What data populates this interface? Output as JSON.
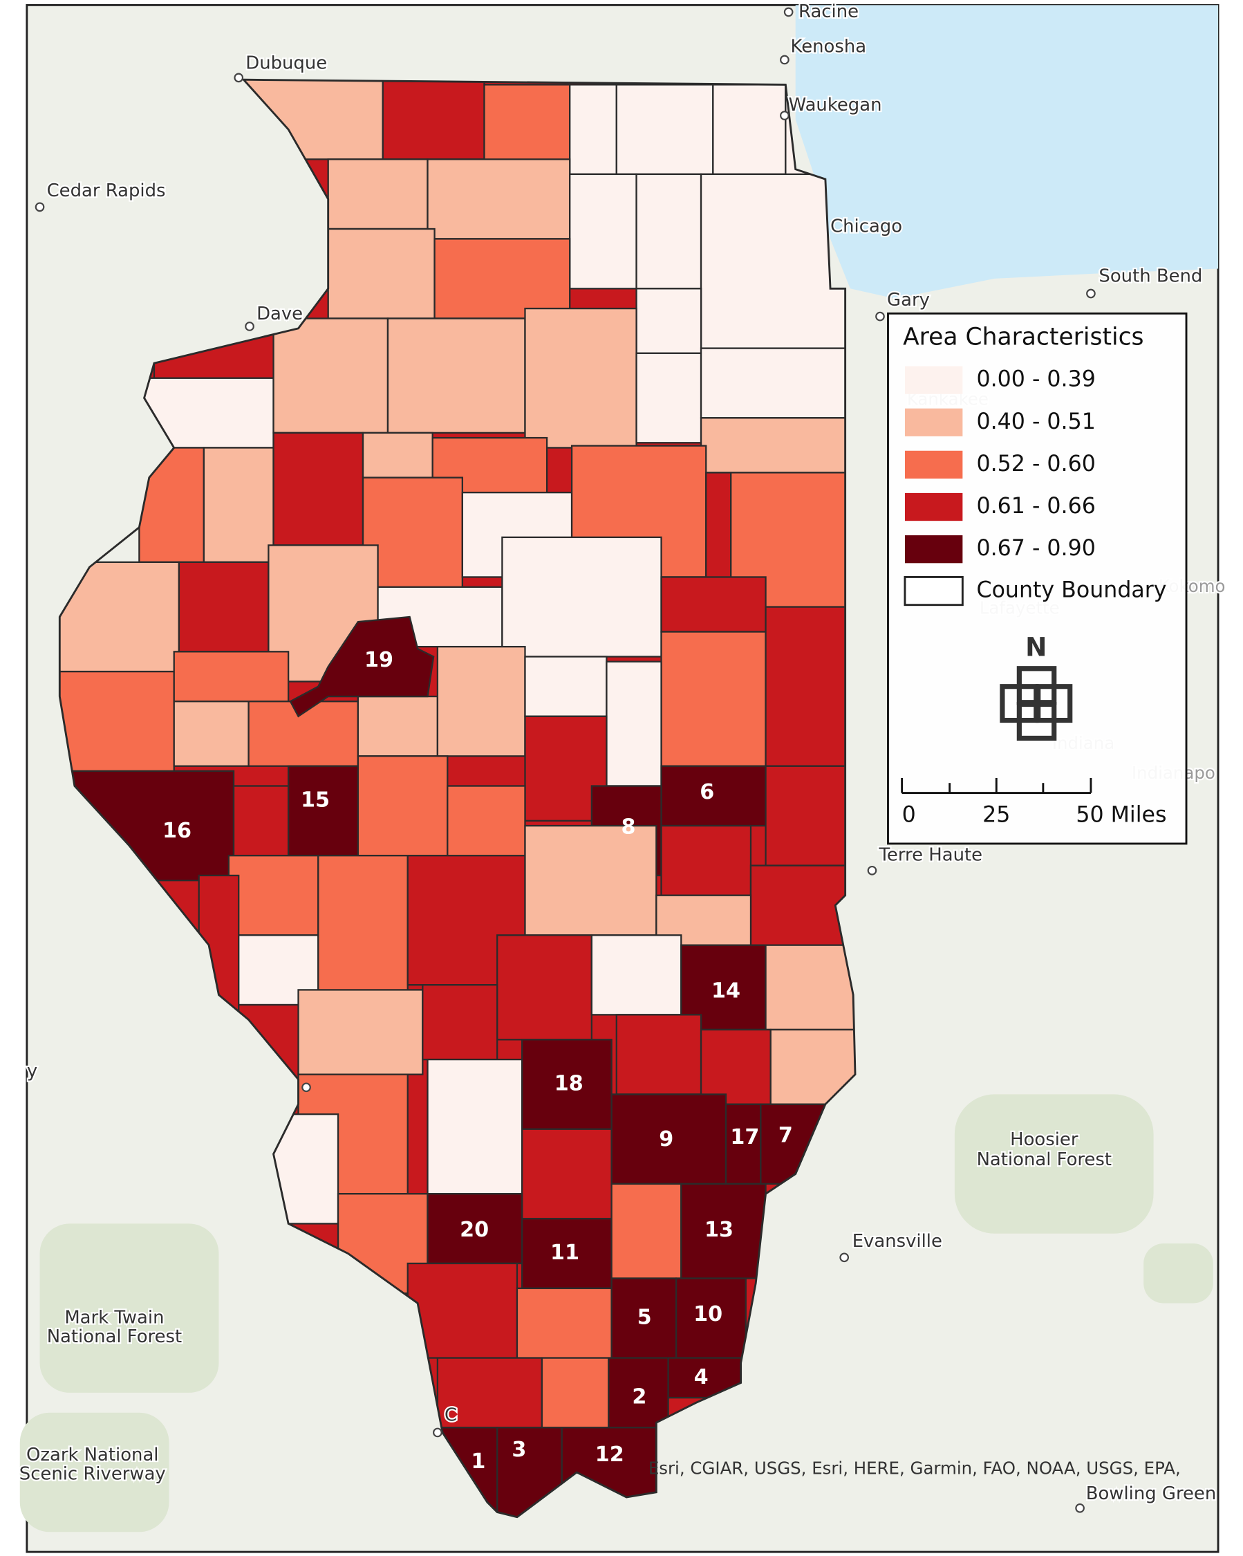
{
  "legend": {
    "title": "Area Characteristics",
    "classes": [
      "0.00 - 0.39",
      "0.40 - 0.51",
      "0.52 - 0.60",
      "0.61 - 0.66",
      "0.67 - 0.90"
    ],
    "colors": [
      "#fdf2ee",
      "#f9b99e",
      "#f66d4e",
      "#c8191e",
      "#67000d"
    ],
    "boundary": "County Boundary"
  },
  "north_arrow": "N",
  "scale_bar": [
    "0",
    "25",
    "50 Miles"
  ],
  "county_ranks": [
    1,
    2,
    3,
    4,
    5,
    6,
    7,
    8,
    9,
    10,
    11,
    12,
    13,
    14,
    15,
    16,
    17,
    18,
    19,
    20
  ],
  "places": [
    "Racine",
    "Kenosha",
    "Dubuque",
    "Waukegan",
    "Cedar Rapids",
    "Chicago",
    "South Bend",
    "Gary",
    "Dave",
    "Terre Haute",
    "Evansville",
    "Mark Twain",
    "National Forest",
    "Ozark National",
    "Scenic Riverway",
    "Hoosier",
    "National Forest",
    "Bowling Green",
    "y",
    "C"
  ],
  "faint_places": [
    "Kankakee",
    "Kokomo",
    "Lafayette",
    "Indiana",
    "Indianapo"
  ],
  "attribution": "Esri, CGIAR, USGS, Esri, HERE, Garmin, FAO, NOAA, USGS, EPA,"
}
